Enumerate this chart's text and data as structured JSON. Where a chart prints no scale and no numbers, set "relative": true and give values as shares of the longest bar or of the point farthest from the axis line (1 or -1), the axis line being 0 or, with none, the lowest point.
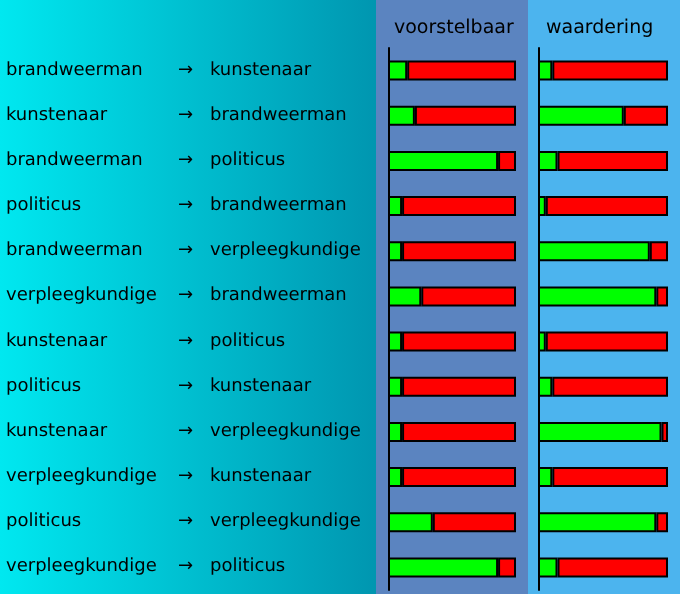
{
  "chart_data": [
    {
      "type": "bar",
      "title": "voorstelbaar",
      "orientation": "horizontal",
      "stacked": true,
      "relative": true,
      "tick_labels": "y",
      "categories": [
        "brandweerman → kunstenaar",
        "kunstenaar → brandweerman",
        "brandweerman → politicus",
        "politicus → brandweerman",
        "brandweerman → verpleegkundige",
        "verpleegkundige → brandweerman",
        "kunstenaar → politicus",
        "politicus → kunstenaar",
        "kunstenaar → verpleegkundige",
        "verpleegkundige → kunstenaar",
        "politicus → verpleegkundige",
        "verpleegkundige → politicus"
      ],
      "series": [
        {
          "color": "#00ff00",
          "values": [
            0.15,
            0.21,
            0.86,
            0.11,
            0.11,
            0.26,
            0.11,
            0.11,
            0.11,
            0.11,
            0.35,
            0.86
          ]
        },
        {
          "color": "#ff0000",
          "values": [
            0.85,
            0.79,
            0.14,
            0.89,
            0.89,
            0.74,
            0.89,
            0.89,
            0.89,
            0.89,
            0.65,
            0.14
          ]
        }
      ]
    },
    {
      "type": "bar",
      "title": "waardering",
      "orientation": "horizontal",
      "stacked": true,
      "relative": true,
      "tick_labels": false,
      "categories": [
        null,
        null,
        null,
        null,
        null,
        null,
        null,
        null,
        null,
        null,
        null,
        null
      ],
      "series": [
        {
          "color": "#00ff00",
          "values": [
            0.11,
            0.66,
            0.15,
            0.06,
            0.86,
            0.91,
            0.06,
            0.11,
            0.95,
            0.11,
            0.91,
            0.15
          ]
        },
        {
          "color": "#ff0000",
          "values": [
            0.89,
            0.34,
            0.85,
            0.94,
            0.14,
            0.09,
            0.94,
            0.89,
            0.05,
            0.89,
            0.09,
            0.85
          ]
        }
      ]
    }
  ]
}
